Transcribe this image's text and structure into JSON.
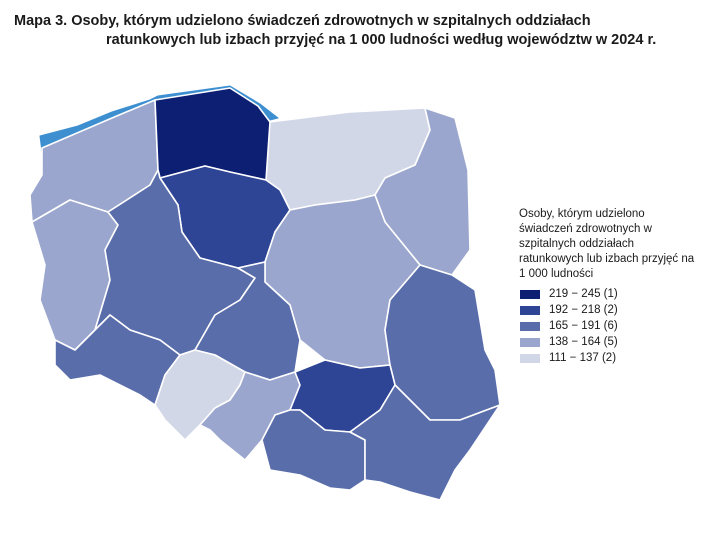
{
  "title": {
    "line1": "Mapa 3. Osoby, którym udzielono świadczeń zdrowotnych w szpitalnych oddziałach",
    "line2": "ratunkowych lub izbach przyjęć na 1 000 ludności według województw w 2024 r."
  },
  "legend": {
    "title": "Osoby, którym udzielono świadczeń zdrowotnych w szpitalnych oddziałach ratunkowych lub izbach przyjęć na 1 000 ludności",
    "classes": [
      {
        "label": "219 − 245 (1)",
        "color": "#0c1f73"
      },
      {
        "label": "192 − 218 (2)",
        "color": "#2e4495"
      },
      {
        "label": "165 − 191 (6)",
        "color": "#5a6dab"
      },
      {
        "label": "138 − 164 (5)",
        "color": "#9aa6cd"
      },
      {
        "label": "111 − 137 (2)",
        "color": "#d2d7e8"
      }
    ]
  },
  "map": {
    "water_color": "#3d8fd0",
    "regions": [
      {
        "name": "pomorskie",
        "class": 0
      },
      {
        "name": "kujawsko-pomorskie",
        "class": 1
      },
      {
        "name": "świętokrzyskie",
        "class": 1
      },
      {
        "name": "wielkopolskie",
        "class": 2
      },
      {
        "name": "łódzkie",
        "class": 2
      },
      {
        "name": "lubelskie",
        "class": 2
      },
      {
        "name": "podkarpackie",
        "class": 2
      },
      {
        "name": "małopolskie",
        "class": 2
      },
      {
        "name": "dolnośląskie",
        "class": 2
      },
      {
        "name": "zachodniopomorskie",
        "class": 3
      },
      {
        "name": "lubuskie",
        "class": 3
      },
      {
        "name": "mazowieckie",
        "class": 3
      },
      {
        "name": "podlaskie",
        "class": 3
      },
      {
        "name": "śląskie",
        "class": 3
      },
      {
        "name": "warmińsko-mazurskie",
        "class": 4
      },
      {
        "name": "opolskie",
        "class": 4
      }
    ]
  }
}
